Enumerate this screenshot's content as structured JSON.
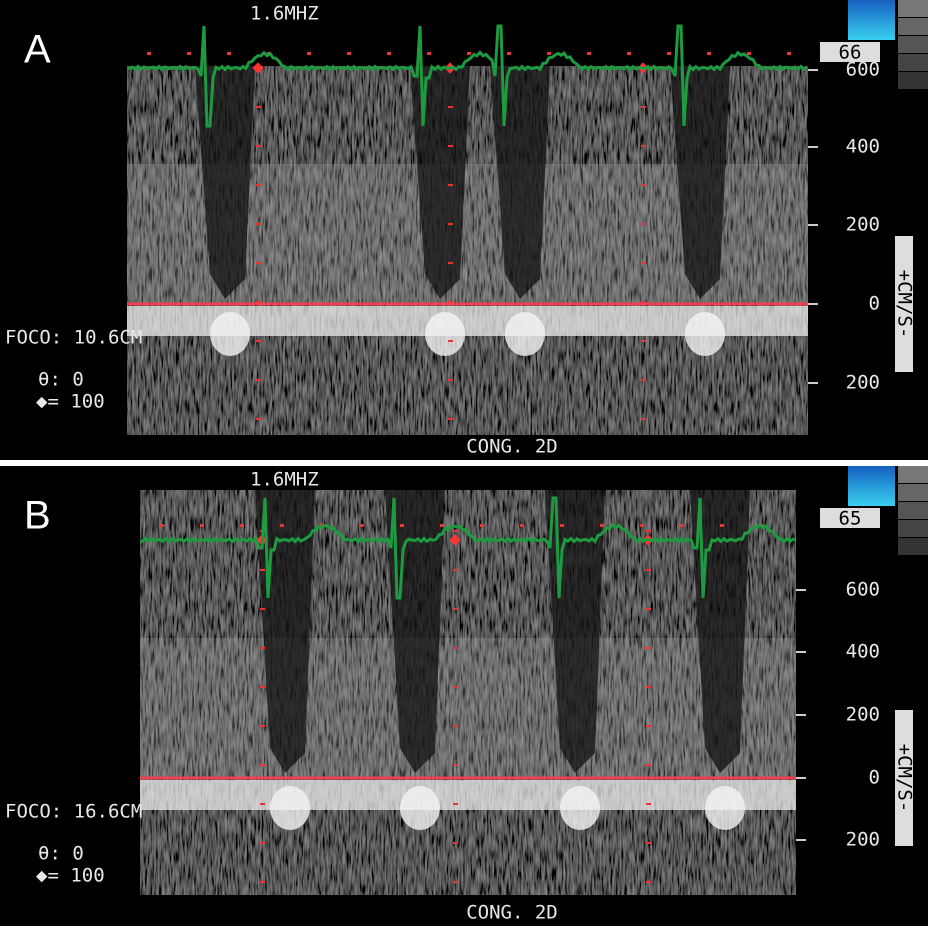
{
  "panels": [
    {
      "label": "A",
      "frequency": "1.6MHZ",
      "gain": "66",
      "scale_labels": [
        "600",
        "400",
        "200",
        "0",
        "200"
      ],
      "unit": "+CM/S-",
      "focus": "FOCO: 10.6CM",
      "angle": "θ: 0",
      "power": "◆= 100",
      "mode": "CONG. 2D"
    },
    {
      "label": "B",
      "frequency": "1.6MHZ",
      "gain": "65",
      "scale_labels": [
        "600",
        "400",
        "200",
        "0",
        "200"
      ],
      "unit": "+CM/S-",
      "focus": "FOCO: 16.6CM",
      "angle": "θ: 0",
      "power": "◆= 100",
      "mode": "CONG. 2D"
    }
  ]
}
